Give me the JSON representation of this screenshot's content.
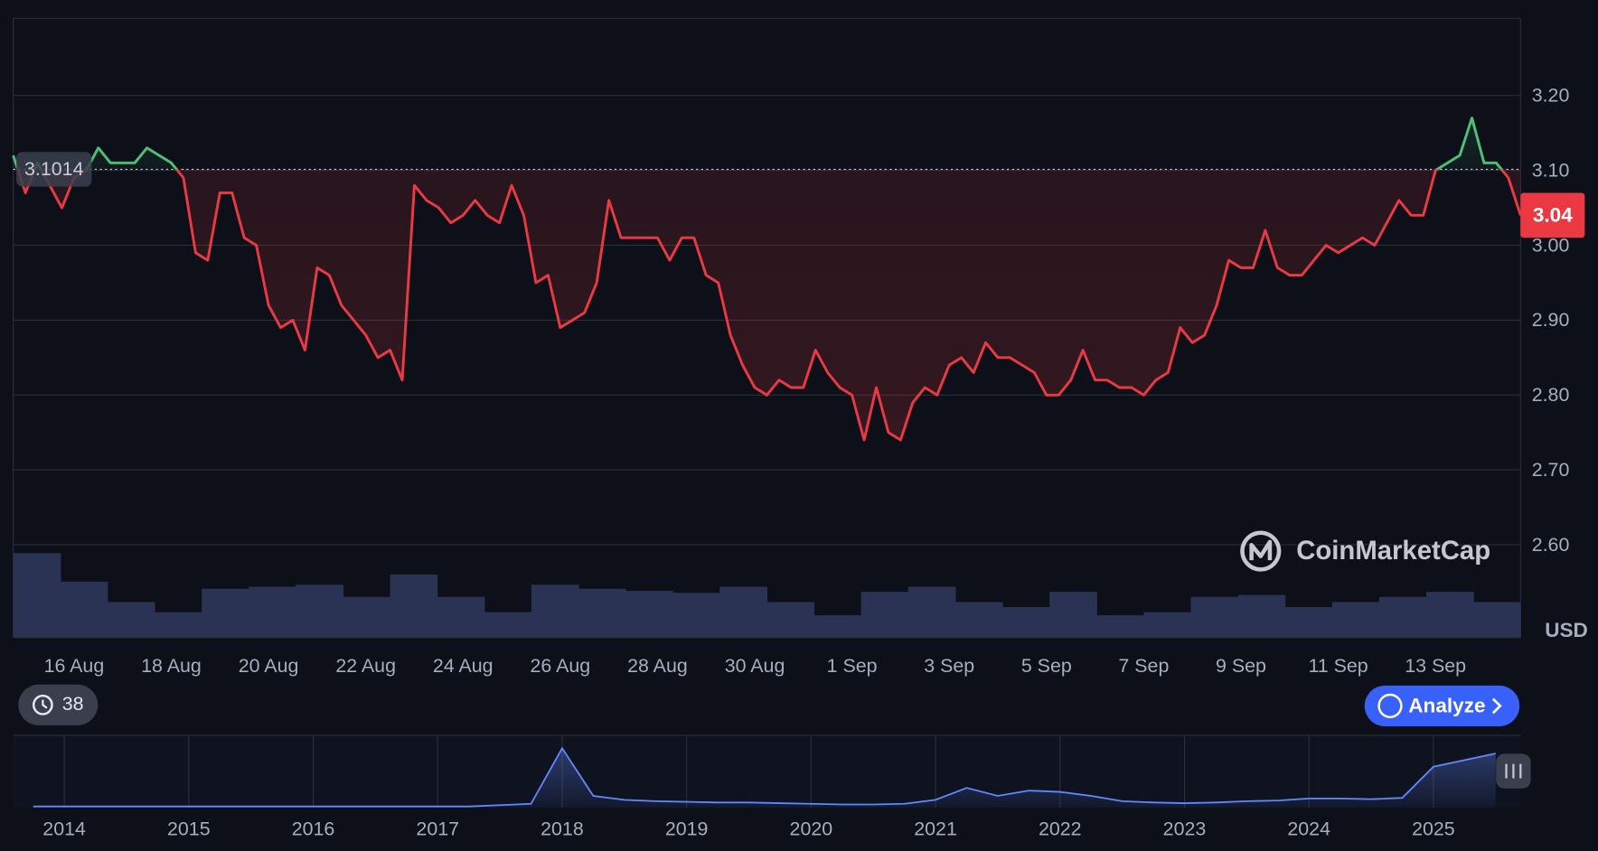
{
  "chart_data": {
    "type": "line",
    "categories": [
      null,
      null,
      null,
      null,
      null,
      "16 Aug",
      null,
      null,
      null,
      null,
      null,
      null,
      null,
      "18 Aug",
      null,
      null,
      null,
      null,
      null,
      null,
      null,
      "20 Aug",
      null,
      null,
      null,
      null,
      null,
      null,
      null,
      "22 Aug",
      null,
      null,
      null,
      null,
      null,
      null,
      null,
      "24 Aug",
      null,
      null,
      null,
      null,
      null,
      null,
      null,
      "26 Aug",
      null,
      null,
      null,
      null,
      null,
      null,
      null,
      "28 Aug",
      null,
      null,
      null,
      null,
      null,
      null,
      null,
      "30 Aug",
      null,
      null,
      null,
      null,
      null,
      null,
      null,
      "1 Sep",
      null,
      null,
      null,
      null,
      null,
      null,
      null,
      "3 Sep",
      null,
      null,
      null,
      null,
      null,
      null,
      null,
      "5 Sep",
      null,
      null,
      null,
      null,
      null,
      null,
      null,
      "7 Sep",
      null,
      null,
      null,
      null,
      null,
      null,
      null,
      "9 Sep",
      null,
      null,
      null,
      null,
      null,
      null,
      null,
      "11 Sep",
      null,
      null,
      null,
      null,
      null,
      null,
      null,
      "13 Sep",
      null,
      null,
      null,
      null,
      null,
      null,
      null
    ],
    "values": [
      3.12,
      3.07,
      3.11,
      3.08,
      3.05,
      3.09,
      3.1,
      3.13,
      3.11,
      3.11,
      3.11,
      3.13,
      3.12,
      3.11,
      3.09,
      2.99,
      2.98,
      3.07,
      3.07,
      3.01,
      3.0,
      2.92,
      2.89,
      2.9,
      2.86,
      2.97,
      2.96,
      2.92,
      2.9,
      2.88,
      2.85,
      2.86,
      2.82,
      3.08,
      3.06,
      3.05,
      3.03,
      3.04,
      3.06,
      3.04,
      3.03,
      3.08,
      3.04,
      2.95,
      2.96,
      2.89,
      2.9,
      2.91,
      2.95,
      3.06,
      3.01,
      3.01,
      3.01,
      3.01,
      2.98,
      3.01,
      3.01,
      2.96,
      2.95,
      2.88,
      2.84,
      2.81,
      2.8,
      2.82,
      2.81,
      2.81,
      2.86,
      2.83,
      2.81,
      2.8,
      2.74,
      2.81,
      2.75,
      2.74,
      2.79,
      2.81,
      2.8,
      2.84,
      2.85,
      2.83,
      2.87,
      2.85,
      2.85,
      2.84,
      2.83,
      2.8,
      2.8,
      2.82,
      2.86,
      2.82,
      2.82,
      2.81,
      2.81,
      2.8,
      2.82,
      2.83,
      2.89,
      2.87,
      2.88,
      2.92,
      2.98,
      2.97,
      2.97,
      3.02,
      2.97,
      2.96,
      2.96,
      2.98,
      3.0,
      2.99,
      3.0,
      3.01,
      3.0,
      3.03,
      3.06,
      3.04,
      3.04,
      3.1,
      3.11,
      3.12,
      3.17,
      3.11,
      3.11,
      3.09,
      3.04
    ],
    "up_color": "#4fbf77",
    "down_color": "#ea3943",
    "baseline": 3.1014,
    "ylim": [
      2.476,
      3.303
    ],
    "yticks": [
      {
        "value": 2.6,
        "label": "2.60"
      },
      {
        "value": 2.7,
        "label": "2.70"
      },
      {
        "value": 2.8,
        "label": "2.80"
      },
      {
        "value": 2.9,
        "label": "2.90"
      },
      {
        "value": 3.0,
        "label": "3.00"
      },
      {
        "value": 3.1,
        "label": "3.10"
      },
      {
        "value": 3.2,
        "label": "3.20"
      }
    ],
    "y_axis_label": "USD",
    "grid": true,
    "volume": {
      "color": "#2b3354",
      "values": [
        83,
        55,
        35,
        25,
        48,
        50,
        52,
        40,
        62,
        40,
        25,
        52,
        48,
        46,
        44,
        50,
        35,
        22,
        45,
        50,
        35,
        30,
        45,
        22,
        25,
        40,
        42,
        30,
        35,
        40,
        45,
        35
      ]
    },
    "navigator": {
      "color": "#6188ff",
      "x": [
        2013.75,
        2014,
        2014.25,
        2014.5,
        2014.75,
        2015,
        2015.25,
        2015.5,
        2015.75,
        2016,
        2016.25,
        2016.5,
        2016.75,
        2017,
        2017.25,
        2017.5,
        2017.75,
        2018,
        2018.25,
        2018.5,
        2018.75,
        2019,
        2019.25,
        2019.5,
        2019.75,
        2020,
        2020.25,
        2020.5,
        2020.75,
        2021,
        2021.25,
        2021.5,
        2021.75,
        2022,
        2022.25,
        2022.5,
        2022.75,
        2023,
        2023.25,
        2023.5,
        2023.75,
        2024,
        2024.25,
        2024.5,
        2024.75,
        2025,
        2025.25,
        2025.5
      ],
      "values": [
        2,
        2,
        2,
        2,
        2,
        2,
        2,
        2,
        2,
        2,
        2,
        2,
        2,
        2,
        2,
        4,
        6,
        90,
        18,
        12,
        10,
        9,
        8,
        8,
        7,
        6,
        5,
        5,
        6,
        12,
        30,
        18,
        26,
        24,
        18,
        10,
        8,
        7,
        8,
        10,
        11,
        14,
        14,
        13,
        15,
        62,
        72,
        82
      ],
      "xlim": [
        2013.59,
        2025.7
      ],
      "xticks": [
        2014,
        2015,
        2016,
        2017,
        2018,
        2019,
        2020,
        2021,
        2022,
        2023,
        2024,
        2025
      ]
    }
  },
  "ui": {
    "watermark": "CoinMarketCap",
    "history_count": 38,
    "analyze_button": "Analyze"
  }
}
